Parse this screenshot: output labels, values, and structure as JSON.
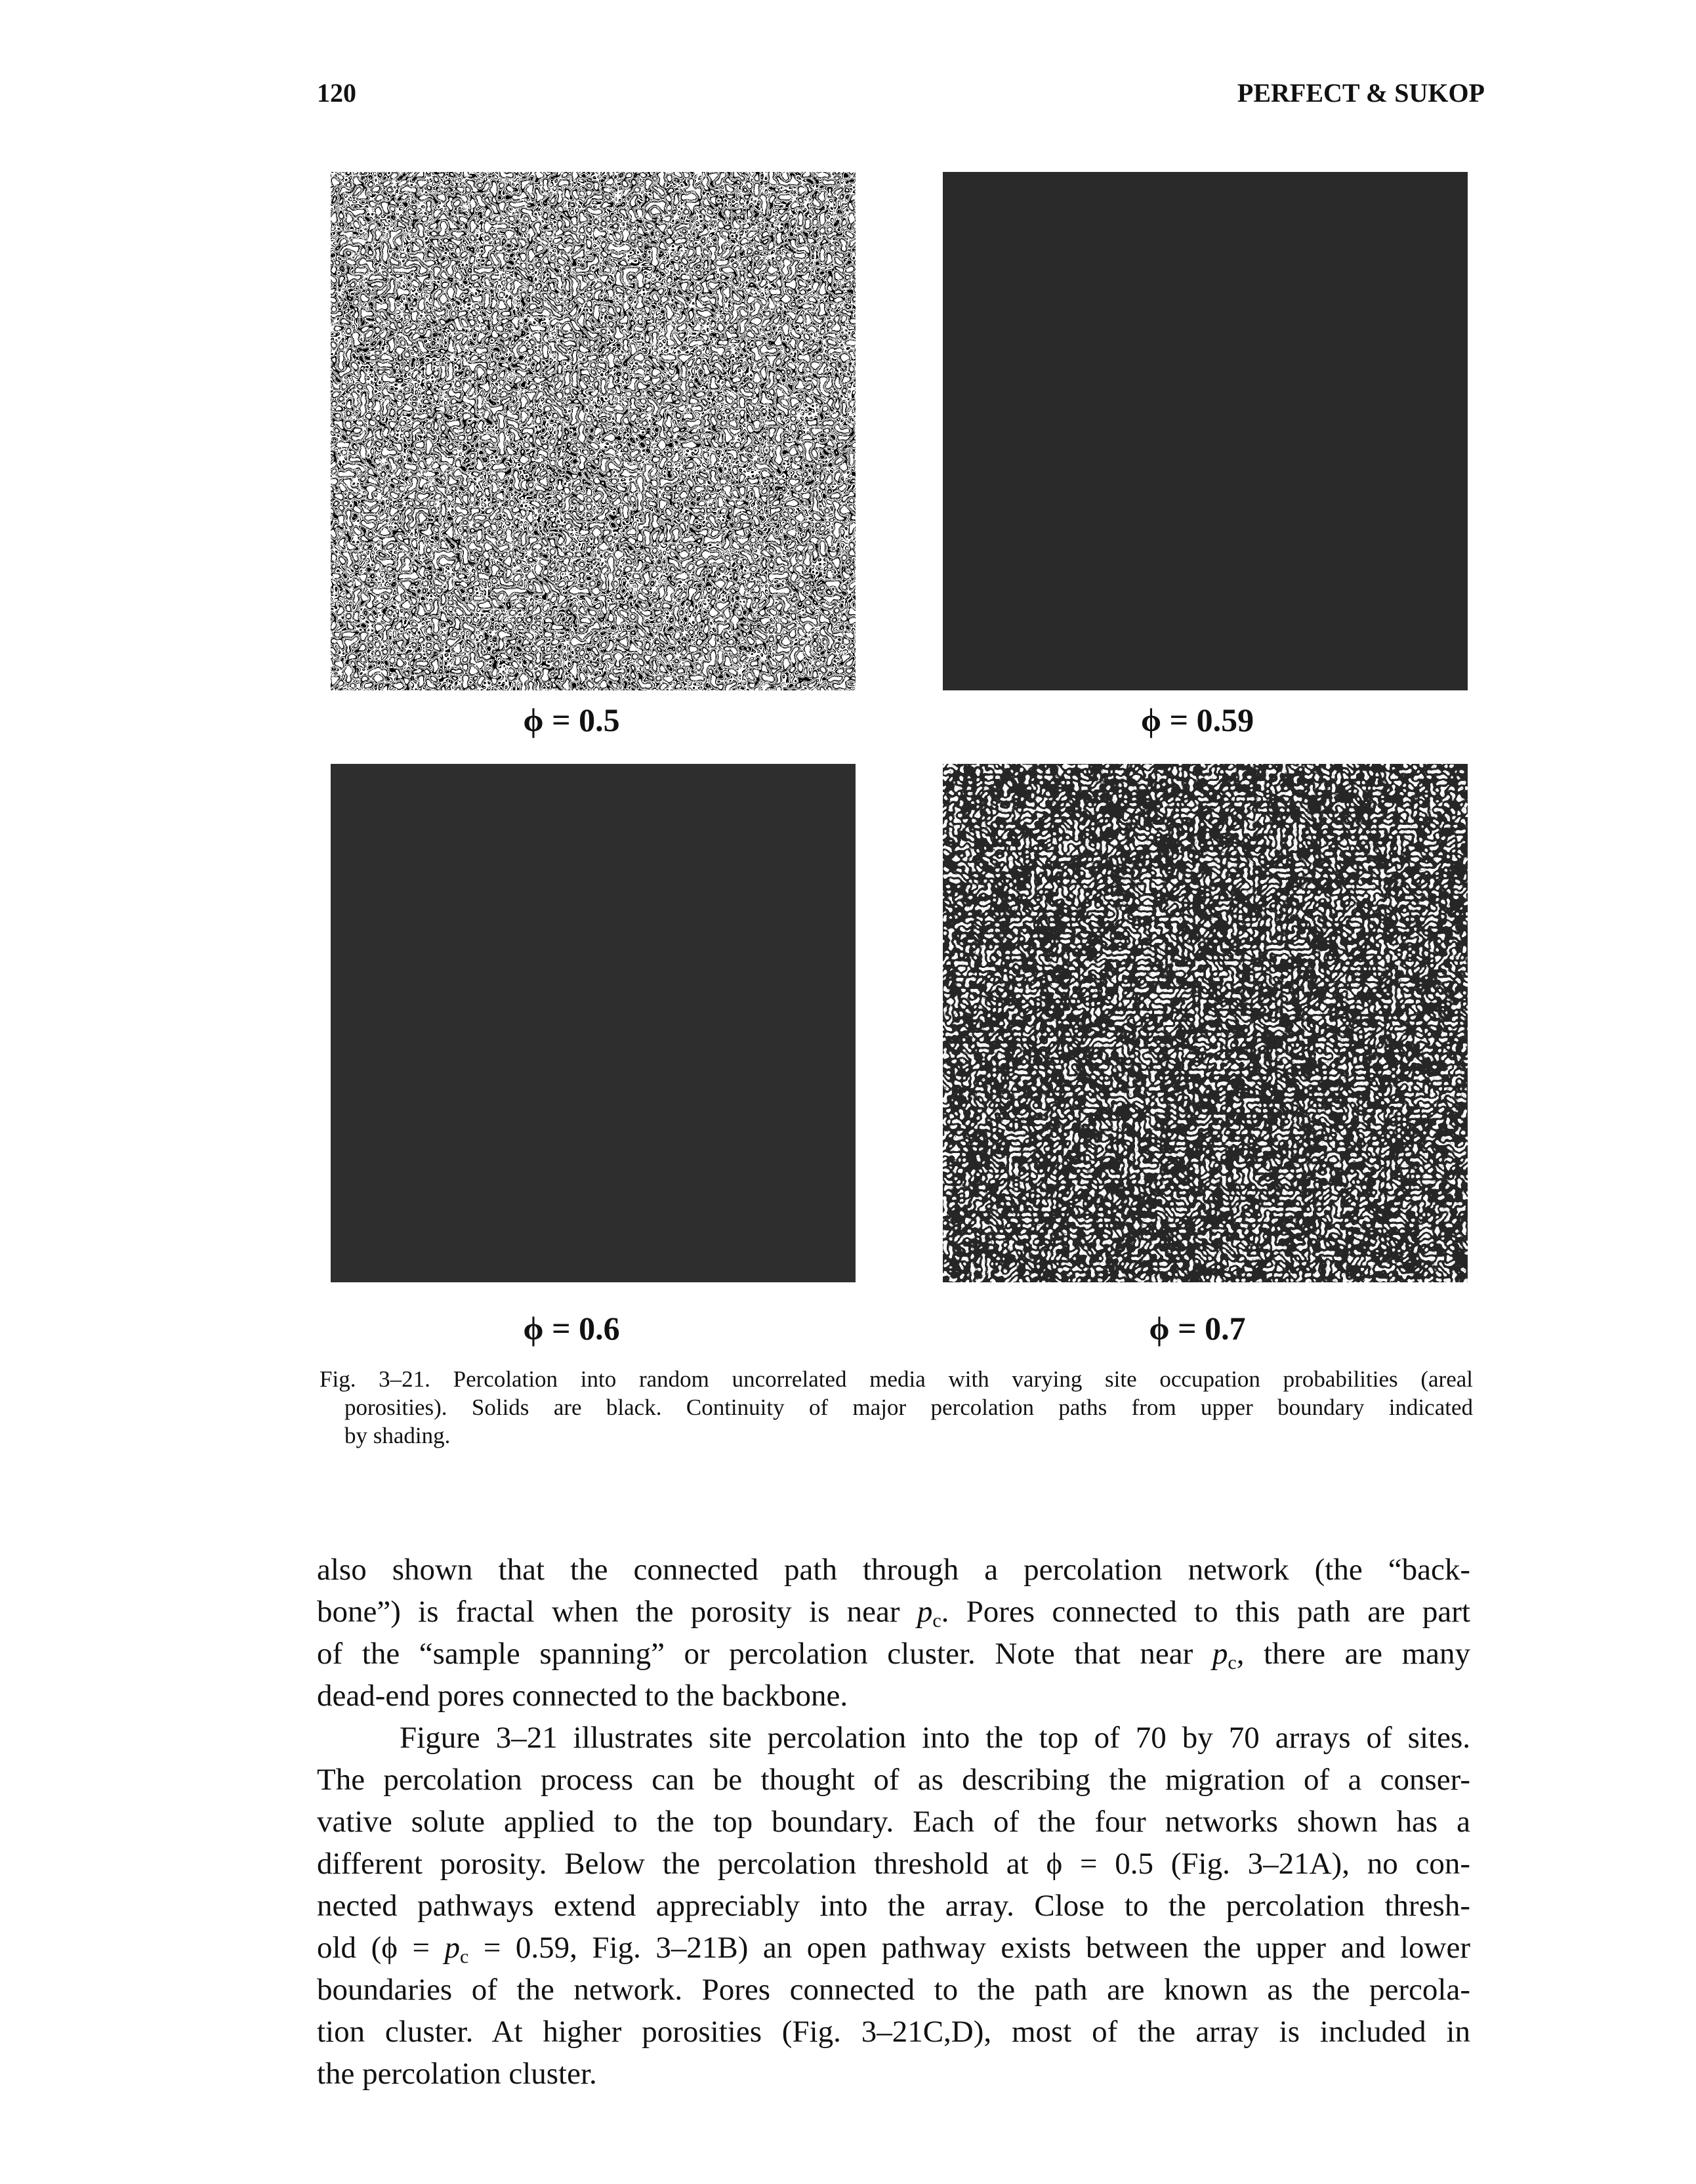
{
  "header": {
    "page_number": "120",
    "running_head": "PERFECT & SUKOP"
  },
  "figure": {
    "panels": [
      {
        "label": "ϕ = 0.5"
      },
      {
        "label": "ϕ = 0.59"
      },
      {
        "label": "ϕ = 0.6"
      },
      {
        "label": "ϕ = 0.7"
      }
    ],
    "caption": {
      "lines": [
        "Fig. 3–21. Percolation into random uncorrelated media with varying site occupation probabilities (areal",
        "porosities). Solids are black. Continuity of major percolation paths from upper boundary indicated",
        "by shading."
      ]
    }
  },
  "body": {
    "paragraphs": [
      {
        "lines": [
          [
            "also shown that the connected path through a percolation network (the “back-"
          ],
          [
            "bone”) is fractal when the porosity is near ",
            {
              "text": "p",
              "style": "italic"
            },
            {
              "text": "c",
              "style": "sub"
            },
            ". Pores connected to this path are part"
          ],
          [
            "of the “sample spanning” or percolation cluster. Note that near ",
            {
              "text": "p",
              "style": "italic"
            },
            {
              "text": "c",
              "style": "sub"
            },
            ", there are many"
          ],
          [
            "dead-end pores connected to the backbone."
          ]
        ]
      },
      {
        "lines": [
          [
            "Figure 3–21 illustrates site percolation into the top of 70 by 70 arrays of sites."
          ],
          [
            "The percolation process can be thought of as describing the migration of a conser-"
          ],
          [
            "vative solute applied to the top boundary. Each of the four networks shown has a"
          ],
          [
            "different porosity. Below the percolation threshold at ϕ = 0.5 (Fig. 3–21A), no con-"
          ],
          [
            "nected pathways extend appreciably into the array. Close to the percolation thresh-"
          ],
          [
            "old (ϕ = ",
            {
              "text": "p",
              "style": "italic"
            },
            {
              "text": "c",
              "style": "sub"
            },
            " = 0.59, Fig. 3–21B) an open pathway exists between the upper and lower"
          ],
          [
            "boundaries of the network. Pores connected to the path are known as the percola-"
          ],
          [
            "tion cluster. At higher porosities (Fig. 3–21C,D), most of the array is included in"
          ],
          [
            "the percolation cluster."
          ]
        ]
      }
    ]
  }
}
